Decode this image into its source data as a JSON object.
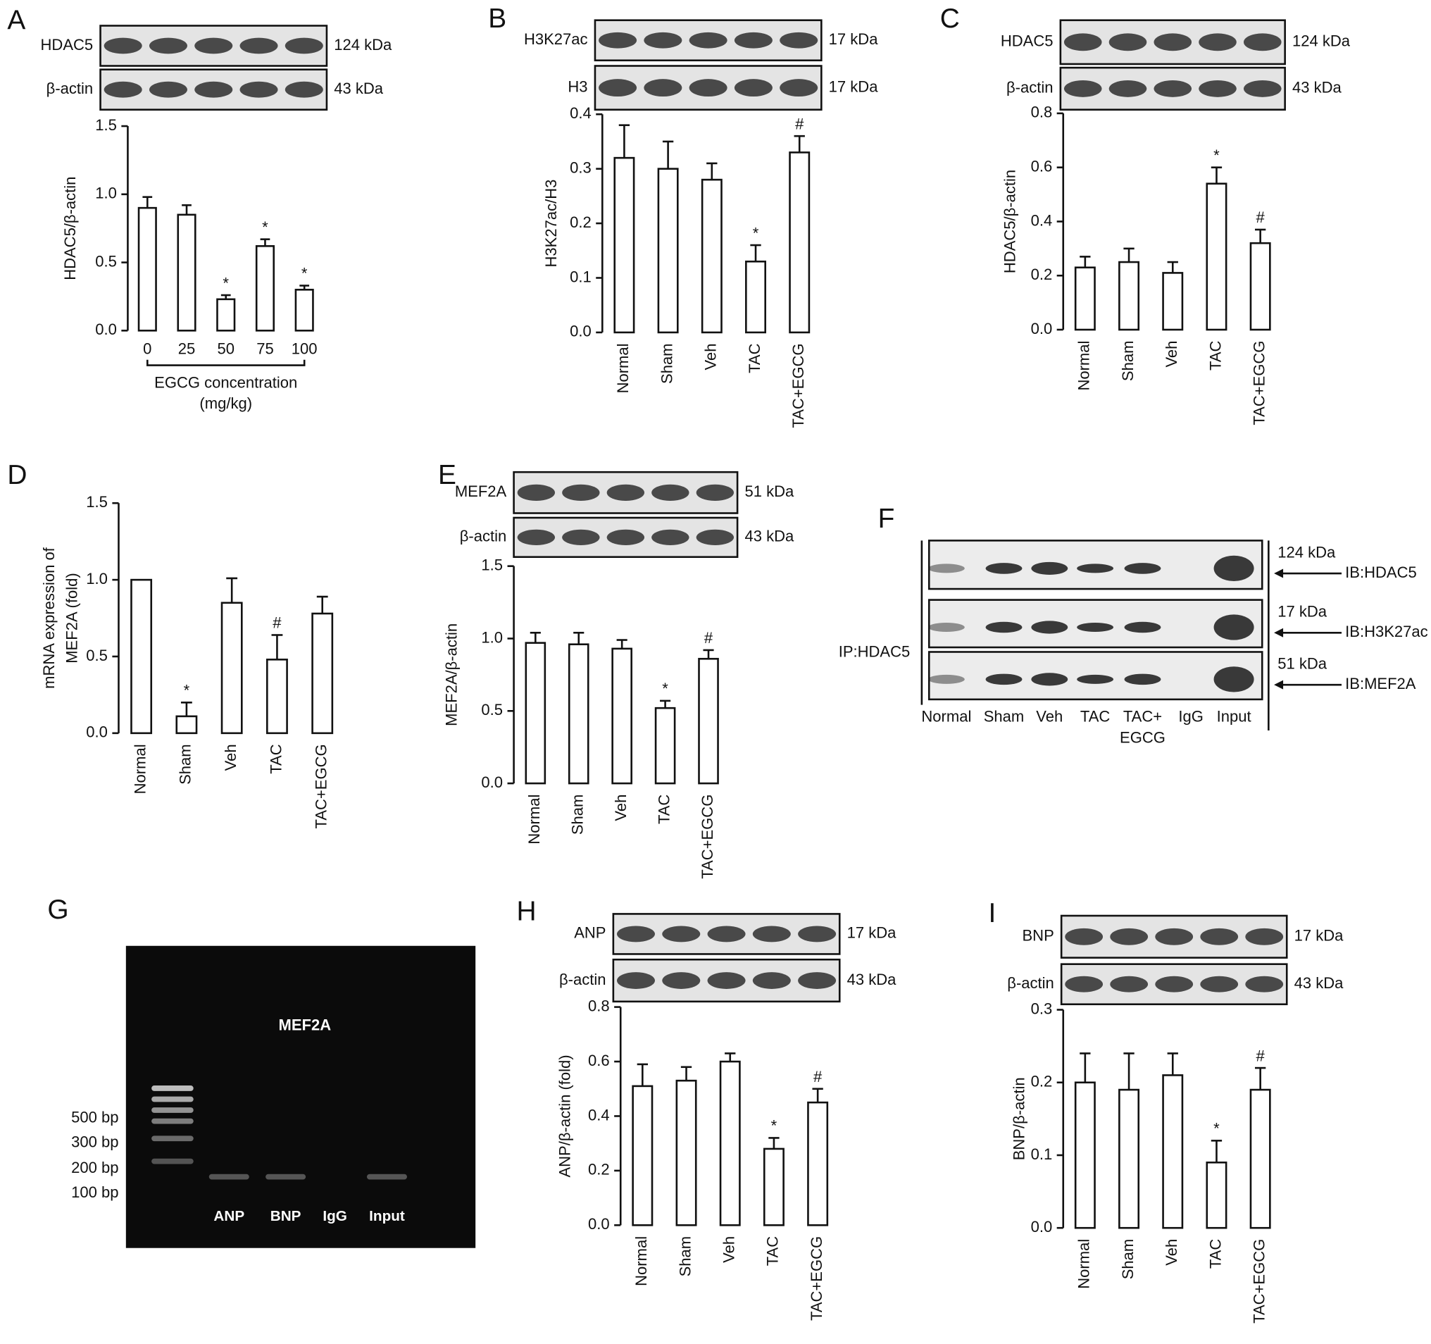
{
  "chart_data": [
    {
      "type": "bar",
      "panel": "A",
      "ylabel": "HDAC5/β-actin",
      "xlabel": [
        "EGCG concentration",
        "(mg/kg)"
      ],
      "blots": [
        {
          "label": "HDAC5",
          "size": "124 kDa"
        },
        {
          "label": "β-actin",
          "size": "43 kDa"
        }
      ],
      "categories": [
        "0",
        "25",
        "50",
        "75",
        "100"
      ],
      "values": [
        0.9,
        0.85,
        0.23,
        0.62,
        0.3
      ],
      "errors": [
        0.08,
        0.07,
        0.03,
        0.05,
        0.03
      ],
      "annotations": [
        null,
        null,
        "*",
        "*",
        "*"
      ],
      "ylim": [
        0,
        1.5
      ],
      "yticks": [
        {
          "value": 0,
          "label": "0.0"
        },
        0.5,
        {
          "value": 1,
          "label": "1.0"
        },
        1.5
      ]
    },
    {
      "type": "bar",
      "panel": "B",
      "ylabel": "H3K27ac/H3",
      "blots": [
        {
          "label": "H3K27ac",
          "size": "17 kDa"
        },
        {
          "label": "H3",
          "size": "17 kDa"
        }
      ],
      "categories": [
        "Normal",
        "Sham",
        "Veh",
        "TAC",
        "TAC+EGCG"
      ],
      "values": [
        0.32,
        0.3,
        0.28,
        0.13,
        0.33
      ],
      "errors": [
        0.06,
        0.05,
        0.03,
        0.03,
        0.03
      ],
      "annotations": [
        null,
        null,
        null,
        "*",
        "#"
      ],
      "ylim": [
        0,
        0.4
      ],
      "yticks": [
        {
          "value": 0,
          "label": "0.0"
        },
        0.1,
        0.2,
        0.3,
        0.4
      ]
    },
    {
      "type": "bar",
      "panel": "C",
      "ylabel": "HDAC5/β-actin",
      "blots": [
        {
          "label": "HDAC5",
          "size": "124 kDa"
        },
        {
          "label": "β-actin",
          "size": "43 kDa"
        }
      ],
      "categories": [
        "Normal",
        "Sham",
        "Veh",
        "TAC",
        "TAC+EGCG"
      ],
      "values": [
        0.23,
        0.25,
        0.21,
        0.54,
        0.32
      ],
      "errors": [
        0.04,
        0.05,
        0.04,
        0.06,
        0.05
      ],
      "annotations": [
        null,
        null,
        null,
        "*",
        "#"
      ],
      "ylim": [
        0,
        0.8
      ],
      "yticks": [
        {
          "value": 0,
          "label": "0.0"
        },
        0.2,
        0.4,
        0.6,
        0.8
      ]
    },
    {
      "type": "bar",
      "panel": "D",
      "ylabel": [
        "mRNA expression of",
        "MEF2A (fold)"
      ],
      "categories": [
        "Normal",
        "Sham",
        "Veh",
        "TAC",
        "TAC+EGCG"
      ],
      "values": [
        1.0,
        0.11,
        0.85,
        0.48,
        0.78
      ],
      "errors": [
        null,
        0.09,
        0.16,
        0.16,
        0.11
      ],
      "annotations": [
        null,
        "*",
        null,
        "#",
        null
      ],
      "ylim": [
        0,
        1.5
      ],
      "yticks": [
        {
          "value": 0,
          "label": "0.0"
        },
        0.5,
        {
          "value": 1,
          "label": "1.0"
        },
        1.5
      ]
    },
    {
      "type": "bar",
      "panel": "E",
      "ylabel": "MEF2A/β-actin",
      "blots": [
        {
          "label": "MEF2A",
          "size": "51 kDa"
        },
        {
          "label": "β-actin",
          "size": "43 kDa"
        }
      ],
      "categories": [
        "Normal",
        "Sham",
        "Veh",
        "TAC",
        "TAC+EGCG"
      ],
      "values": [
        0.97,
        0.96,
        0.93,
        0.52,
        0.86
      ],
      "errors": [
        0.07,
        0.08,
        0.06,
        0.05,
        0.06
      ],
      "annotations": [
        null,
        null,
        null,
        "*",
        "#"
      ],
      "ylim": [
        0,
        1.5
      ],
      "yticks": [
        {
          "value": 0,
          "label": "0.0"
        },
        0.5,
        {
          "value": 1,
          "label": "1.0"
        },
        1.5
      ]
    },
    {
      "type": "bar",
      "panel": "H",
      "ylabel": "ANP/β-actin (fold)",
      "blots": [
        {
          "label": "ANP",
          "size": "17 kDa"
        },
        {
          "label": "β-actin",
          "size": "43 kDa"
        }
      ],
      "categories": [
        "Normal",
        "Sham",
        "Veh",
        "TAC",
        "TAC+EGCG"
      ],
      "values": [
        0.51,
        0.53,
        0.6,
        0.28,
        0.45
      ],
      "errors": [
        0.08,
        0.05,
        0.03,
        0.04,
        0.05
      ],
      "annotations": [
        null,
        null,
        null,
        "*",
        "#"
      ],
      "ylim": [
        0,
        0.8
      ],
      "yticks": [
        {
          "value": 0,
          "label": "0.0"
        },
        0.2,
        0.4,
        0.6,
        0.8
      ]
    },
    {
      "type": "bar",
      "panel": "I",
      "ylabel": "BNP/β-actin",
      "blots": [
        {
          "label": "BNP",
          "size": "17 kDa"
        },
        {
          "label": "β-actin",
          "size": "43 kDa"
        }
      ],
      "categories": [
        "Normal",
        "Sham",
        "Veh",
        "TAC",
        "TAC+EGCG"
      ],
      "values": [
        0.2,
        0.19,
        0.21,
        0.09,
        0.19
      ],
      "errors": [
        0.04,
        0.05,
        0.03,
        0.03,
        0.03
      ],
      "annotations": [
        null,
        null,
        null,
        "*",
        "#"
      ],
      "ylim": [
        0,
        0.3
      ],
      "yticks": [
        {
          "value": 0,
          "label": "0.0"
        },
        0.1,
        0.2,
        0.3
      ]
    }
  ],
  "blot_panel": {
    "panel": "F",
    "ip_label": "IP:HDAC5",
    "rows": [
      {
        "size": "124 kDa",
        "ib": "IB:HDAC5"
      },
      {
        "size": "17 kDa",
        "ib": "IB:H3K27ac"
      },
      {
        "size": "51 kDa",
        "ib": "IB:MEF2A"
      }
    ],
    "lanes": [
      [
        "Normal"
      ],
      [
        "Sham"
      ],
      [
        "Veh"
      ],
      [
        "TAC"
      ],
      [
        "TAC+",
        "EGCG"
      ],
      [
        "IgG"
      ],
      [
        "Input"
      ]
    ]
  },
  "gel_panel": {
    "panel": "G",
    "title": "MEF2A",
    "ladder": [
      "500 bp",
      "300 bp",
      "200 bp",
      "100 bp"
    ],
    "lanes": [
      "ANP",
      "BNP",
      "IgG",
      "Input"
    ]
  }
}
